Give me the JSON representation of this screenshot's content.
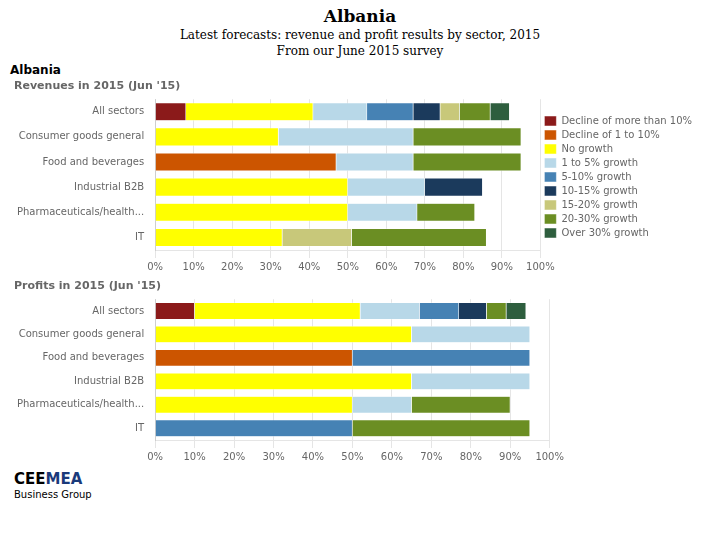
{
  "title": "Albania",
  "subtitle": [
    "Latest forecasts: revenue and profit results by sector, 2015",
    "From our June 2015 survey"
  ],
  "annotations": [
    {
      "text": "Albania"
    },
    {
      "text": "CEE",
      "color": "#000000"
    },
    {
      "text": "MEA",
      "color": "#1A3A7A"
    },
    {
      "text": "Business Group",
      "color": "#000000"
    }
  ],
  "chart_data": [
    {
      "type": "bar",
      "orientation": "horizontal",
      "stacked": true,
      "grid": true,
      "legend": "right",
      "title": "Revenues in 2015 (Jun '15)",
      "categories": [
        "All sectors",
        "Consumer goods general",
        "Food and beverages",
        "Industrial B2B",
        "Pharmaceuticals/health...",
        "IT"
      ],
      "series": [
        {
          "name": "Decline of more than 10%",
          "color": "#8B1A1A",
          "values": [
            8,
            0,
            0,
            0,
            0,
            0
          ]
        },
        {
          "name": "Decline of 1 to 10%",
          "color": "#CC5500",
          "values": [
            0,
            0,
            47,
            0,
            0,
            0
          ]
        },
        {
          "name": "No growth",
          "color": "#FFFF00",
          "values": [
            33,
            32,
            0,
            50,
            50,
            33
          ]
        },
        {
          "name": "1 to 5% growth",
          "color": "#B8D8E8",
          "values": [
            14,
            35,
            20,
            20,
            18,
            0
          ]
        },
        {
          "name": "5-10% growth",
          "color": "#4682B4",
          "values": [
            12,
            0,
            0,
            0,
            0,
            0
          ]
        },
        {
          "name": "10-15% growth",
          "color": "#1B3A5C",
          "values": [
            7,
            0,
            0,
            15,
            0,
            0
          ]
        },
        {
          "name": "15-20% growth",
          "color": "#C8C87A",
          "values": [
            5,
            0,
            0,
            0,
            0,
            18
          ]
        },
        {
          "name": "20-30% growth",
          "color": "#6B8E23",
          "values": [
            8,
            28,
            28,
            0,
            15,
            35
          ]
        },
        {
          "name": "Over 30% growth",
          "color": "#2E5E3E",
          "values": [
            5,
            0,
            0,
            0,
            0,
            0
          ]
        }
      ],
      "xlim": [
        0,
        100
      ],
      "xticks": [
        {
          "value": 0,
          "label": "0%"
        },
        {
          "value": 10,
          "label": "10%"
        },
        {
          "value": 20,
          "label": "20%"
        },
        {
          "value": 30,
          "label": "30%"
        },
        {
          "value": 40,
          "label": "40%"
        },
        {
          "value": 50,
          "label": "50%"
        },
        {
          "value": 60,
          "label": "60%"
        },
        {
          "value": 70,
          "label": "70%"
        },
        {
          "value": 80,
          "label": "80%"
        },
        {
          "value": 90,
          "label": "90%"
        },
        {
          "value": 100,
          "label": "100%"
        }
      ]
    },
    {
      "type": "bar",
      "orientation": "horizontal",
      "stacked": true,
      "grid": true,
      "title": "Profits in 2015 (Jun '15)",
      "categories": [
        "All sectors",
        "Consumer goods general",
        "Food and beverages",
        "Industrial B2B",
        "Pharmaceuticals/health...",
        "IT"
      ],
      "series": [
        {
          "name": "Decline of more than 10%",
          "color": "#8B1A1A",
          "values": [
            10,
            0,
            0,
            0,
            0,
            0
          ]
        },
        {
          "name": "Decline of 1 to 10%",
          "color": "#CC5500",
          "values": [
            0,
            0,
            50,
            0,
            0,
            0
          ]
        },
        {
          "name": "No growth",
          "color": "#FFFF00",
          "values": [
            42,
            65,
            0,
            65,
            50,
            0
          ]
        },
        {
          "name": "1 to 5% growth",
          "color": "#B8D8E8",
          "values": [
            15,
            30,
            0,
            30,
            15,
            0
          ]
        },
        {
          "name": "5-10% growth",
          "color": "#4682B4",
          "values": [
            10,
            0,
            45,
            0,
            0,
            50
          ]
        },
        {
          "name": "10-15% growth",
          "color": "#1B3A5C",
          "values": [
            7,
            0,
            0,
            0,
            0,
            0
          ]
        },
        {
          "name": "15-20% growth",
          "color": "#C8C87A",
          "values": [
            0,
            0,
            0,
            0,
            0,
            0
          ]
        },
        {
          "name": "20-30% growth",
          "color": "#6B8E23",
          "values": [
            5,
            0,
            0,
            0,
            25,
            45
          ]
        },
        {
          "name": "Over 30% growth",
          "color": "#2E5E3E",
          "values": [
            5,
            0,
            0,
            0,
            0,
            0
          ]
        }
      ],
      "xlim": [
        0,
        100
      ],
      "xticks": [
        {
          "value": 0,
          "label": "0%"
        },
        {
          "value": 10,
          "label": "10%"
        },
        {
          "value": 20,
          "label": "20%"
        },
        {
          "value": 30,
          "label": "30%"
        },
        {
          "value": 40,
          "label": "40%"
        },
        {
          "value": 50,
          "label": "50%"
        },
        {
          "value": 60,
          "label": "60%"
        },
        {
          "value": 70,
          "label": "70%"
        },
        {
          "value": 80,
          "label": "80%"
        },
        {
          "value": 90,
          "label": "90%"
        },
        {
          "value": 100,
          "label": "100%"
        }
      ]
    }
  ]
}
